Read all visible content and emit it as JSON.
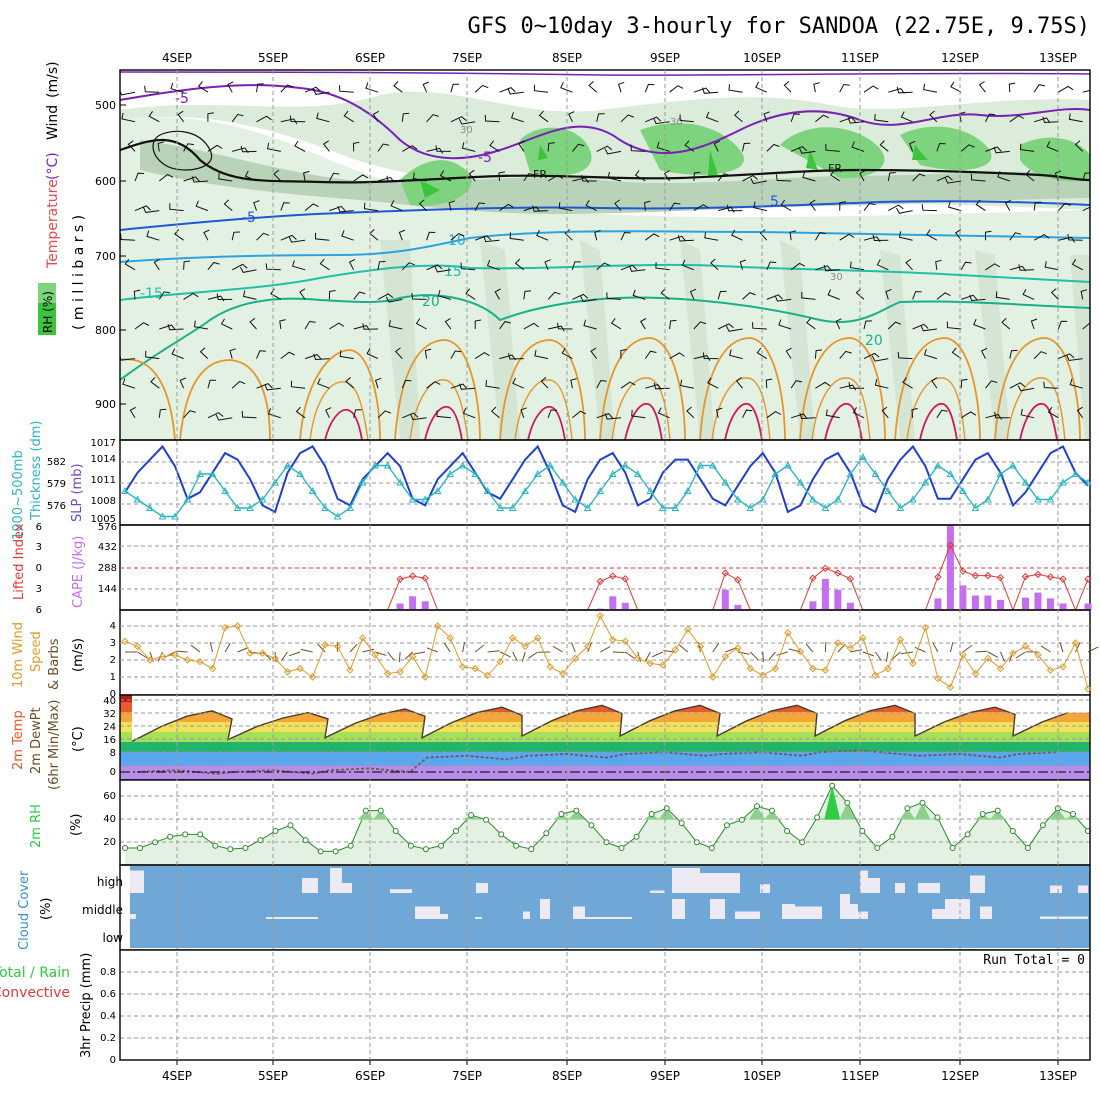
{
  "header": {
    "title": "GFS 0~10day 3-hourly for SANDOA (22.75E, 9.75S)"
  },
  "axis": {
    "date_labels": [
      "4SEP",
      "5SEP",
      "6SEP",
      "7SEP",
      "8SEP",
      "9SEP",
      "10SEP",
      "11SEP",
      "12SEP",
      "13SEP"
    ]
  },
  "colors": {
    "wind_barb": "#111111",
    "temp_contour_cold": "#7a1fb8",
    "temp_contour_mid": "#2056d8",
    "temp_contour_warm": "#e07a10",
    "slp_line": "#1f3fcf",
    "thickness_line": "#2bb6c4",
    "lifted_index": "#e03a3a",
    "cape_bar": "#c36ff0",
    "wind10": "#e39a2a",
    "rh_fill": "#2ecc40",
    "cloud_bg": "#6fa8d6"
  },
  "panels": {
    "upper": {
      "label_wind": "Wind",
      "label_wind_unit": "(m/s)",
      "label_temp": "Temperature",
      "label_temp_unit": "(°C)",
      "label_rh": "RH (%)",
      "label_millibars": "( m i l l i b a r s )",
      "freezing_label": "FR",
      "contour_labels": [
        "-5",
        "-5",
        "-5",
        "5",
        "10",
        "15",
        "20",
        "-15",
        "20",
        "30",
        "30",
        "30"
      ]
    },
    "slp": {
      "label_thickness": "1000~500mb",
      "label_thickness2": "Thickness (dm)",
      "label_slp": "SLP (mb)"
    },
    "stability": {
      "label_li": "Lifted Index",
      "label_cape": "CAPE (J/kg)"
    },
    "wind10m": {
      "label_line1": "10m Wind",
      "label_line2": "Speed",
      "label_line3": "& Barbs",
      "label_unit": "(m/s)"
    },
    "temp2m": {
      "label_line1": "2m Temp",
      "label_line2": "2m DewPt",
      "label_line3": "(6hr Min/Max)",
      "label_unit": "(°C)"
    },
    "rh2m": {
      "label": "2m RH",
      "label_unit": "(%)"
    },
    "cloud": {
      "label": "Cloud Cover",
      "label_unit": "(%)",
      "layer_labels": [
        "high",
        "middle",
        "low"
      ]
    },
    "precip": {
      "label_left1": "Total / Rain",
      "label_left2": "Convective",
      "label_axis": "3hr Precip (mm)",
      "run_total": "Run Total = 0"
    }
  },
  "chart_data": [
    {
      "type": "contour",
      "title": "Wind / Temperature / RH (millibars)",
      "ylabel": "millibars",
      "y_ticks": [
        500,
        600,
        700,
        800,
        900
      ],
      "ylim": [
        450,
        950
      ],
      "freezing_level_mb": [
        560,
        575,
        585,
        588,
        592,
        590,
        587,
        585,
        590,
        588,
        585,
        583,
        585
      ]
    },
    {
      "type": "line",
      "title": "1000~500mb Thickness (dm) / SLP (mb)",
      "y_ticks_left": [
        576,
        579,
        582
      ],
      "y_ticks_right": [
        1005,
        1008,
        1011,
        1014,
        1017
      ],
      "ylim_left": [
        575,
        584
      ],
      "ylim_right": [
        1004,
        1017
      ],
      "series": [
        {
          "name": "SLP (mb)",
          "values": [
            1009,
            1012,
            1014,
            1016,
            1013,
            1008,
            1009,
            1012,
            1015,
            1014,
            1011,
            1007,
            1006,
            1012,
            1015,
            1016,
            1013,
            1008,
            1007,
            1011,
            1013,
            1015,
            1013,
            1008,
            1007,
            1011,
            1013,
            1015,
            1012,
            1009,
            1008,
            1011,
            1014,
            1016,
            1012,
            1007,
            1006,
            1011,
            1014,
            1015,
            1012,
            1007,
            1008,
            1012,
            1014,
            1014,
            1011,
            1008,
            1007,
            1010,
            1013,
            1015,
            1012,
            1006,
            1007,
            1011,
            1014,
            1015,
            1012,
            1007,
            1006,
            1011,
            1014,
            1016,
            1013,
            1008,
            1008,
            1011,
            1014,
            1015,
            1012,
            1007,
            1009,
            1012,
            1015,
            1016,
            1012,
            1010
          ]
        },
        {
          "name": "Thickness (dm)",
          "values": [
            578,
            577,
            576,
            575,
            575,
            577,
            580,
            580,
            578,
            576,
            576,
            577,
            579,
            581,
            580,
            578,
            576,
            575,
            576,
            579,
            581,
            581,
            579,
            577,
            577,
            578,
            580,
            581,
            580,
            578,
            576,
            576,
            578,
            580,
            581,
            579,
            577,
            576,
            578,
            580,
            581,
            580,
            578,
            576,
            576,
            578,
            581,
            581,
            579,
            577,
            576,
            577,
            580,
            581,
            579,
            577,
            576,
            577,
            580,
            582,
            580,
            578,
            576,
            577,
            579,
            581,
            580,
            578,
            576,
            577,
            580,
            581,
            579,
            577,
            577,
            579,
            580,
            579
          ]
        }
      ]
    },
    {
      "type": "bar",
      "title": "Lifted Index / CAPE (J/kg)",
      "y_ticks_li": [
        6,
        3,
        0,
        -3,
        -6
      ],
      "y_ticks_cape": [
        144,
        288,
        432,
        576
      ],
      "cape_values": [
        0,
        0,
        0,
        0,
        0,
        0,
        0,
        0,
        0,
        0,
        0,
        0,
        0,
        0,
        0,
        0,
        0,
        0,
        0,
        0,
        0,
        0,
        45,
        95,
        60,
        0,
        0,
        0,
        0,
        0,
        0,
        0,
        0,
        0,
        0,
        0,
        0,
        0,
        10,
        95,
        50,
        0,
        0,
        0,
        0,
        0,
        0,
        0,
        140,
        35,
        0,
        0,
        0,
        0,
        0,
        60,
        215,
        140,
        50,
        0,
        0,
        0,
        0,
        0,
        0,
        80,
        580,
        170,
        100,
        100,
        70,
        0,
        85,
        120,
        80,
        45,
        0,
        45
      ]
    },
    {
      "type": "line",
      "title": "10m Wind Speed & Barbs (m/s)",
      "y_ticks": [
        0,
        1,
        2,
        3,
        4
      ],
      "ylim": [
        0,
        5
      ],
      "values": [
        3.1,
        2.8,
        2.0,
        2.2,
        2.3,
        2.0,
        1.9,
        1.5,
        3.9,
        4.0,
        2.4,
        2.4,
        2.1,
        1.3,
        1.5,
        1.0,
        2.9,
        2.8,
        1.4,
        3.3,
        2.3,
        1.2,
        1.3,
        2.2,
        1.0,
        4.0,
        3.3,
        1.6,
        1.5,
        1.1,
        1.9,
        3.3,
        2.8,
        3.3,
        1.6,
        1.2,
        2.1,
        2.8,
        4.6,
        3.2,
        3.1,
        2.1,
        1.8,
        1.7,
        2.6,
        3.8,
        2.8,
        1.0,
        2.2,
        2.7,
        1.5,
        1.1,
        1.5,
        3.6,
        2.5,
        1.5,
        1.4,
        3.0,
        2.7,
        3.3,
        1.1,
        1.5,
        3.2,
        1.8,
        3.9,
        0.9,
        0.4,
        2.3,
        1.2,
        2.1,
        1.5,
        2.4,
        2.8,
        2.3,
        1.4,
        1.6,
        3.0,
        0.3
      ]
    },
    {
      "type": "area",
      "title": "2m Temp / 2m DewPt (6hr Min/Max) (°C)",
      "y_ticks": [
        0,
        8,
        16,
        24,
        32,
        40
      ],
      "ylim": [
        -2,
        40
      ],
      "temp_max_per_day": [
        34,
        33,
        35,
        36,
        37,
        37,
        37,
        37,
        36,
        36
      ],
      "temp_min_per_day": [
        17,
        18,
        19,
        19,
        20,
        20,
        20,
        20,
        20,
        20
      ],
      "dewpoint_per_day": [
        1,
        1,
        2,
        9,
        10,
        11,
        11,
        12,
        10,
        11
      ]
    },
    {
      "type": "area",
      "title": "2m RH (%)",
      "y_ticks": [
        20,
        40,
        60
      ],
      "ylim": [
        0,
        75
      ],
      "values": [
        15,
        15,
        20,
        25,
        27,
        27,
        17,
        14,
        15,
        22,
        30,
        35,
        22,
        12,
        12,
        17,
        48,
        48,
        30,
        17,
        14,
        17,
        30,
        44,
        40,
        27,
        17,
        14,
        28,
        45,
        48,
        35,
        20,
        15,
        25,
        45,
        50,
        37,
        20,
        15,
        35,
        40,
        52,
        48,
        30,
        20,
        42,
        70,
        55,
        30,
        15,
        25,
        50,
        55,
        42,
        15,
        27,
        45,
        48,
        30,
        15,
        35,
        50,
        45,
        30
      ]
    },
    {
      "type": "bar",
      "title": "Cloud Cover (%)",
      "categories": [
        "high",
        "middle",
        "low"
      ]
    },
    {
      "type": "bar",
      "title": "3hr Precip (mm)",
      "y_ticks": [
        0,
        0.2,
        0.4,
        0.6,
        0.8
      ],
      "ylim": [
        0,
        1
      ],
      "values": [],
      "run_total": 0
    }
  ]
}
